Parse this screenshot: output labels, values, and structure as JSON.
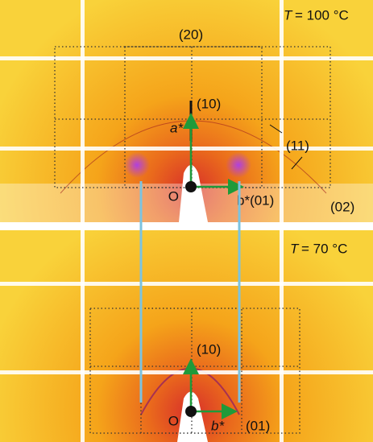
{
  "panels": [
    {
      "temperature": {
        "symbol": "T",
        "value": "= 100 °C"
      },
      "reflections": [
        "(20)",
        "(10)",
        "(11)",
        "(02)"
      ],
      "axes": {
        "origin": "O",
        "a": "a*",
        "b": "b*(01)"
      }
    },
    {
      "temperature": {
        "symbol": "T",
        "value": "= 70 °C"
      },
      "reflections": [
        "(10)",
        "(01)"
      ],
      "axes": {
        "origin": "O",
        "b": "b*"
      }
    }
  ]
}
